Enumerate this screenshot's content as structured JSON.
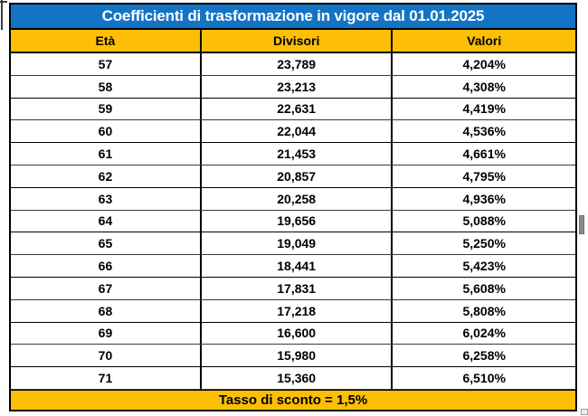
{
  "chart_data": {
    "type": "table",
    "title": "Coefficienti di trasformazione in vigore dal 01.01.2025",
    "columns": [
      "Età",
      "Divisori",
      "Valori"
    ],
    "rows": [
      [
        "57",
        "23,789",
        "4,204%"
      ],
      [
        "58",
        "23,213",
        "4,308%"
      ],
      [
        "59",
        "22,631",
        "4,419%"
      ],
      [
        "60",
        "22,044",
        "4,536%"
      ],
      [
        "61",
        "21,453",
        "4,661%"
      ],
      [
        "62",
        "20,857",
        "4,795%"
      ],
      [
        "63",
        "20,258",
        "4,936%"
      ],
      [
        "64",
        "19,656",
        "5,088%"
      ],
      [
        "65",
        "19,049",
        "5,250%"
      ],
      [
        "66",
        "18,441",
        "5,423%"
      ],
      [
        "67",
        "17,831",
        "5,608%"
      ],
      [
        "68",
        "17,218",
        "5,808%"
      ],
      [
        "69",
        "16,600",
        "6,024%"
      ],
      [
        "70",
        "15,980",
        "6,258%"
      ],
      [
        "71",
        "15,360",
        "6,510%"
      ]
    ],
    "footer": "Tasso di sconto = 1,5%",
    "layout_hints": "title band blue, header and footer bands gold, all text bold, black grid borders"
  },
  "colors": {
    "title_background": "#1374c5",
    "title_text": "#ffffff",
    "band_gold": "#fcbf05",
    "body_text": "#000000",
    "grid_border": "#000000"
  }
}
